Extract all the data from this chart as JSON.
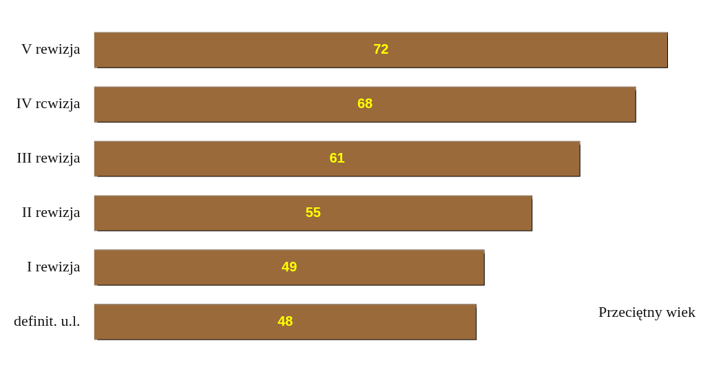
{
  "chart_data": {
    "type": "bar",
    "orientation": "horizontal",
    "categories": [
      "V rewizja",
      "IV rcwizja",
      "III rewizja",
      "II rewizja",
      "I rewizja",
      "definit. u.l."
    ],
    "values": [
      72,
      68,
      61,
      55,
      49,
      48
    ],
    "color": "#9a6a3a",
    "data_labels": true,
    "legend": false,
    "annotations": [
      "Przeciętny wiek"
    ]
  }
}
